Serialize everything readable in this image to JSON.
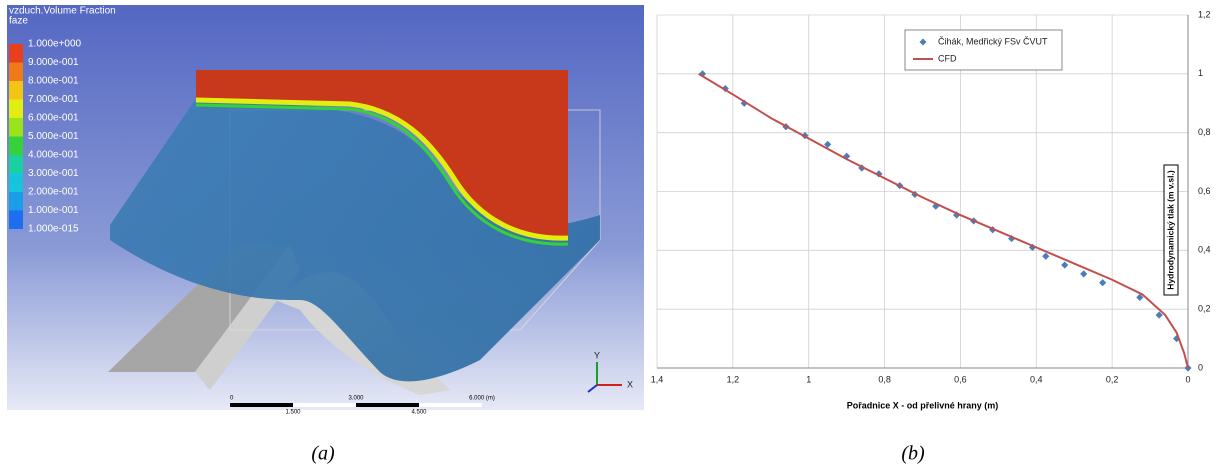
{
  "panel_a": {
    "colorbar": {
      "title": "vzduch.Volume Fraction",
      "subtitle": "faze",
      "labels": [
        "1.000e+000",
        "9.000e-001",
        "8.000e-001",
        "7.000e-001",
        "6.000e-001",
        "5.000e-001",
        "4.000e-001",
        "3.000e-001",
        "2.000e-001",
        "1.000e-001",
        "1.000e-015"
      ],
      "colors": [
        "#e8401c",
        "#f07a18",
        "#f4c414",
        "#e2ee10",
        "#9ae21a",
        "#34d238",
        "#18d0a0",
        "#16c4dc",
        "#1a9ee8",
        "#1e6ef0"
      ]
    },
    "scale_bar": {
      "top_labels": [
        "0",
        "3.000",
        "6.000 (m)"
      ],
      "bottom_labels": [
        "1.500",
        "4.500"
      ]
    },
    "axes": [
      "Y",
      "X"
    ],
    "caption": "(a)"
  },
  "chart_data": {
    "type": "scatter",
    "caption": "(b)",
    "x_label": "Pořadnice X - od přelivné hrany (m)",
    "y_label": "Hydrodynamický tlak (m v.sl.)",
    "xlim": [
      1.4,
      0
    ],
    "ylim": [
      0,
      1.2
    ],
    "xticks": [
      {
        "value": 1.4,
        "label": "1,4"
      },
      {
        "value": 1.2,
        "label": "1,2"
      },
      1,
      {
        "value": 0.8,
        "label": "0,8"
      },
      {
        "value": 0.6,
        "label": "0,6"
      },
      {
        "value": 0.4,
        "label": "0,4"
      },
      {
        "value": 0.2,
        "label": "0,2"
      },
      0
    ],
    "yticks": [
      0,
      {
        "value": 0.2,
        "label": "0,2"
      },
      {
        "value": 0.4,
        "label": "0,4"
      },
      {
        "value": 0.6,
        "label": "0,6"
      },
      {
        "value": 0.8,
        "label": "0,8"
      },
      1,
      {
        "value": 1.2,
        "label": "1,2"
      }
    ],
    "y_axis_side": "right",
    "grid": true,
    "series": [
      {
        "name": "Čihák, Medřický FSv ČVUT",
        "type": "scatter",
        "color": "#4a7ebb",
        "x": [
          1.28,
          1.22,
          1.17,
          1.06,
          1.01,
          0.95,
          0.9,
          0.86,
          0.815,
          0.76,
          0.72,
          0.665,
          0.61,
          0.565,
          0.515,
          0.465,
          0.41,
          0.375,
          0.325,
          0.275,
          0.225,
          0.127,
          0.076,
          0.03,
          0
        ],
        "values": [
          1.0,
          0.95,
          0.9,
          0.82,
          0.79,
          0.76,
          0.72,
          0.68,
          0.66,
          0.62,
          0.59,
          0.55,
          0.52,
          0.5,
          0.47,
          0.44,
          0.41,
          0.38,
          0.35,
          0.32,
          0.29,
          0.24,
          0.18,
          0.1,
          0
        ]
      },
      {
        "name": "CFD",
        "type": "line",
        "color": "#c0504d",
        "x": [
          1.29,
          1.2,
          1.1,
          1.0,
          0.9,
          0.8,
          0.7,
          0.6,
          0.5,
          0.4,
          0.3,
          0.2,
          0.12,
          0.06,
          0.03,
          0.01,
          0
        ],
        "values": [
          1.0,
          0.93,
          0.85,
          0.78,
          0.71,
          0.645,
          0.58,
          0.52,
          0.465,
          0.41,
          0.355,
          0.3,
          0.25,
          0.18,
          0.12,
          0.05,
          0
        ]
      }
    ]
  }
}
